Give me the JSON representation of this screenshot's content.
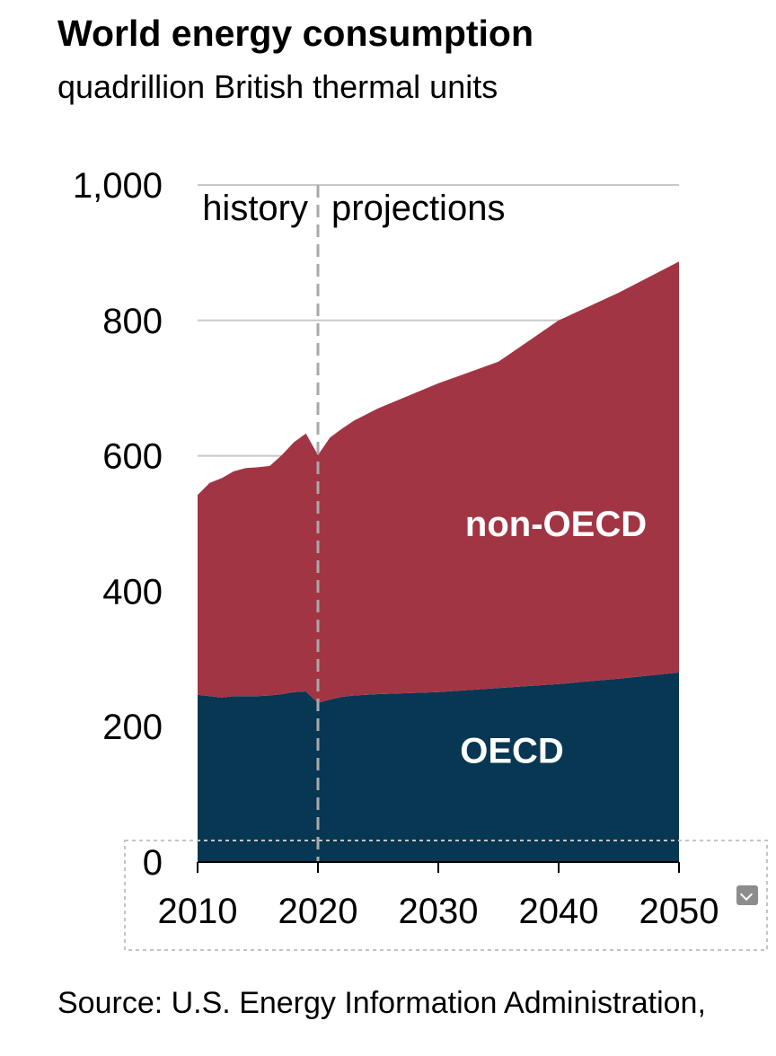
{
  "chart_data": {
    "type": "area",
    "title": "World energy consumption",
    "subtitle": "quadrillion British thermal units",
    "x_ticks": [
      "2010",
      "2020",
      "2030",
      "2040",
      "2050"
    ],
    "y_ticks": [
      "0",
      "200",
      "400",
      "600",
      "800",
      "1,000"
    ],
    "ylim": [
      0,
      1000
    ],
    "xlim": [
      2010,
      2050
    ],
    "stacked": true,
    "divider": {
      "x": 2020,
      "left_label": "history",
      "right_label": "projections"
    },
    "grid": "horizontal",
    "series": [
      {
        "name": "OECD",
        "color": "#073752",
        "x": [
          2010,
          2011,
          2012,
          2013,
          2014,
          2015,
          2016,
          2017,
          2018,
          2019,
          2020,
          2021,
          2022,
          2023,
          2025,
          2030,
          2035,
          2040,
          2045,
          2050
        ],
        "values": [
          247,
          245,
          243,
          245,
          245,
          245,
          246,
          248,
          251,
          252,
          235,
          240,
          244,
          246,
          248,
          251,
          257,
          263,
          271,
          280
        ]
      },
      {
        "name": "non-OECD",
        "color": "#a23544",
        "x": [
          2010,
          2011,
          2012,
          2013,
          2014,
          2015,
          2016,
          2017,
          2018,
          2019,
          2020,
          2021,
          2022,
          2023,
          2025,
          2030,
          2035,
          2040,
          2045,
          2050
        ],
        "values": [
          295,
          315,
          324,
          332,
          337,
          338,
          339,
          353,
          369,
          381,
          366,
          387,
          396,
          406,
          422,
          456,
          482,
          537,
          570,
          607
        ]
      }
    ]
  },
  "source": "Source:  U.S. Energy Information Administration,"
}
